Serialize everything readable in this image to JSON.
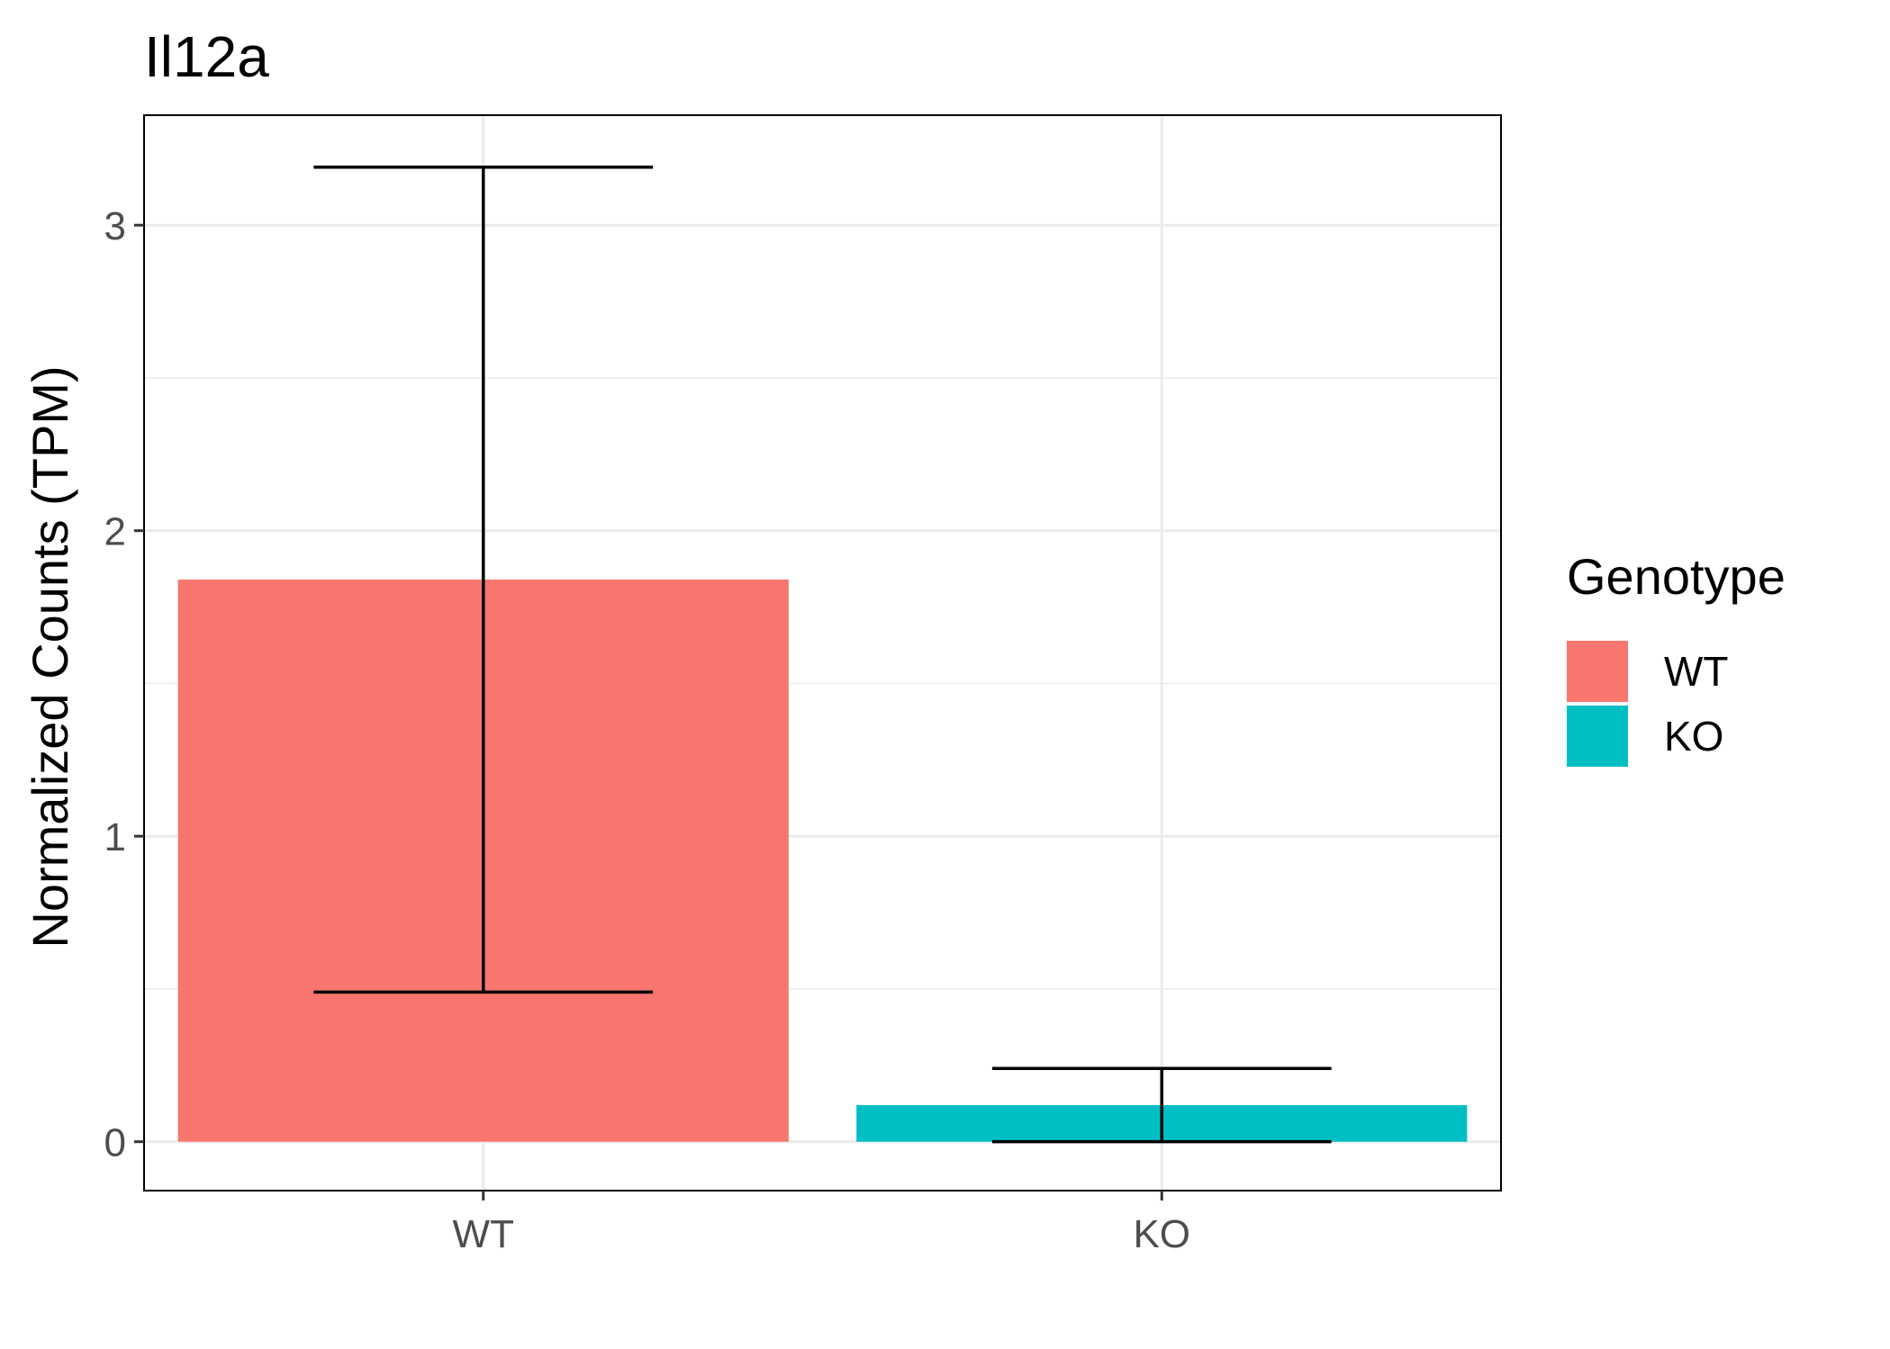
{
  "chart_data": {
    "type": "bar",
    "title": "Il12a",
    "xlabel": "",
    "ylabel": "Normalized Counts (TPM)",
    "categories": [
      "WT",
      "KO"
    ],
    "values": [
      1.84,
      0.12
    ],
    "error_low": [
      0.49,
      0.0
    ],
    "error_high": [
      3.19,
      0.24
    ],
    "ylim": [
      -0.16,
      3.36
    ],
    "yticks": [
      0,
      1,
      2,
      3
    ],
    "ytick_labels": [
      "0",
      "1",
      "2",
      "3"
    ],
    "colors": [
      "#F8766D",
      "#00BFC4"
    ],
    "grid": true,
    "legend": {
      "title": "Genotype",
      "placement": "right",
      "entries": [
        {
          "label": "WT",
          "color": "#F8766D"
        },
        {
          "label": "KO",
          "color": "#00BFC4"
        }
      ]
    }
  }
}
